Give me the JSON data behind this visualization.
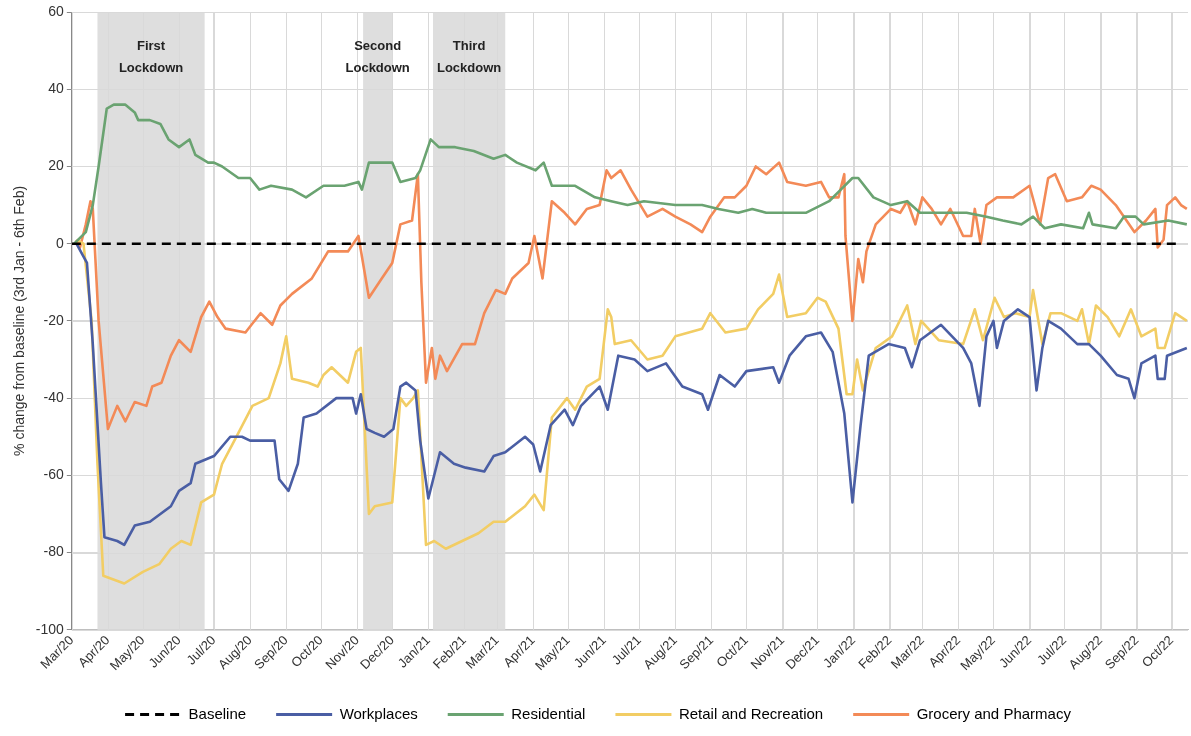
{
  "chart_data": {
    "type": "line",
    "ylabel": "% change from baseline (3rd Jan - 6th Feb)",
    "xlim": [
      "2020-03-01",
      "2022-10-15"
    ],
    "xticks": [
      {
        "value": "2020-03-01",
        "label": "Mar/20"
      },
      {
        "value": "2020-04-01",
        "label": "Apr/20"
      },
      {
        "value": "2020-05-01",
        "label": "May/20"
      },
      {
        "value": "2020-06-01",
        "label": "Jun/20"
      },
      {
        "value": "2020-07-01",
        "label": "Jul/20"
      },
      {
        "value": "2020-08-01",
        "label": "Aug/20"
      },
      {
        "value": "2020-09-01",
        "label": "Sep/20"
      },
      {
        "value": "2020-10-01",
        "label": "Oct/20"
      },
      {
        "value": "2020-11-01",
        "label": "Nov/20"
      },
      {
        "value": "2020-12-01",
        "label": "Dec/20"
      },
      {
        "value": "2021-01-01",
        "label": "Jan/21"
      },
      {
        "value": "2021-02-01",
        "label": "Feb/21"
      },
      {
        "value": "2021-03-01",
        "label": "Mar/21"
      },
      {
        "value": "2021-04-01",
        "label": "Apr/21"
      },
      {
        "value": "2021-05-01",
        "label": "May/21"
      },
      {
        "value": "2021-06-01",
        "label": "Jun/21"
      },
      {
        "value": "2021-07-01",
        "label": "Jul/21"
      },
      {
        "value": "2021-08-01",
        "label": "Aug/21"
      },
      {
        "value": "2021-09-01",
        "label": "Sep/21"
      },
      {
        "value": "2021-10-01",
        "label": "Oct/21"
      },
      {
        "value": "2021-11-01",
        "label": "Nov/21"
      },
      {
        "value": "2021-12-01",
        "label": "Dec/21"
      },
      {
        "value": "2022-01-01",
        "label": "Jan/22"
      },
      {
        "value": "2022-02-01",
        "label": "Feb/22"
      },
      {
        "value": "2022-03-01",
        "label": "Mar/22"
      },
      {
        "value": "2022-04-01",
        "label": "Apr/22"
      },
      {
        "value": "2022-05-01",
        "label": "May/22"
      },
      {
        "value": "2022-06-01",
        "label": "Jun/22"
      },
      {
        "value": "2022-07-01",
        "label": "Jul/22"
      },
      {
        "value": "2022-08-01",
        "label": "Aug/22"
      },
      {
        "value": "2022-09-01",
        "label": "Sep/22"
      },
      {
        "value": "2022-10-01",
        "label": "Oct/22"
      }
    ],
    "ylim": [
      -100,
      60
    ],
    "yticks": [
      -100,
      -80,
      -60,
      -40,
      -20,
      0,
      20,
      40,
      60
    ],
    "grid": true,
    "legend": "bottom",
    "marker": "none",
    "bands": [
      {
        "axis": "x",
        "from": "2020-03-23",
        "to": "2020-06-23",
        "label": "First Lockdown",
        "color": "#dedede"
      },
      {
        "axis": "x",
        "from": "2020-11-06",
        "to": "2020-12-01",
        "label": "Second Lockdown",
        "color": "#dedede"
      },
      {
        "axis": "x",
        "from": "2021-01-05",
        "to": "2021-03-08",
        "label": "Third Lockdown",
        "color": "#dedede"
      }
    ],
    "series": [
      {
        "name": "Baseline",
        "color": "#000000",
        "line_style": "dashed",
        "x": [
          "2020-03-01",
          "2022-10-07"
        ],
        "values": [
          0,
          0
        ]
      },
      {
        "name": "Workplaces",
        "color": "#4a5ea4",
        "x": [
          "2020-03-05",
          "2020-03-14",
          "2020-03-19",
          "2020-03-26",
          "2020-03-29",
          "2020-04-09",
          "2020-04-15",
          "2020-04-24",
          "2020-05-07",
          "2020-05-16",
          "2020-05-25",
          "2020-06-01",
          "2020-06-11",
          "2020-06-15",
          "2020-07-01",
          "2020-07-15",
          "2020-07-25",
          "2020-08-01",
          "2020-08-22",
          "2020-08-26",
          "2020-09-03",
          "2020-09-11",
          "2020-09-16",
          "2020-09-27",
          "2020-10-14",
          "2020-10-28",
          "2020-10-31",
          "2020-11-04",
          "2020-11-09",
          "2020-11-16",
          "2020-11-24",
          "2020-12-02",
          "2020-12-08",
          "2020-12-13",
          "2020-12-21",
          "2020-12-25",
          "2021-01-01",
          "2021-01-11",
          "2021-01-23",
          "2021-02-02",
          "2021-02-18",
          "2021-02-26",
          "2021-03-08",
          "2021-03-25",
          "2021-04-01",
          "2021-04-07",
          "2021-04-16",
          "2021-04-28",
          "2021-05-05",
          "2021-05-12",
          "2021-05-28",
          "2021-06-04",
          "2021-06-13",
          "2021-06-27",
          "2021-07-08",
          "2021-07-24",
          "2021-08-07",
          "2021-08-24",
          "2021-08-29",
          "2021-09-08",
          "2021-09-21",
          "2021-10-01",
          "2021-10-24",
          "2021-10-29",
          "2021-11-07",
          "2021-11-21",
          "2021-12-04",
          "2021-12-14",
          "2021-12-24",
          "2021-12-31",
          "2022-01-07",
          "2022-01-14",
          "2022-01-31",
          "2022-02-14",
          "2022-02-20",
          "2022-02-27",
          "2022-03-17",
          "2022-04-05",
          "2022-04-12",
          "2022-04-19",
          "2022-04-25",
          "2022-05-01",
          "2022-05-04",
          "2022-05-10",
          "2022-05-22",
          "2022-06-01",
          "2022-06-07",
          "2022-06-12",
          "2022-06-17",
          "2022-06-28",
          "2022-07-12",
          "2022-07-22",
          "2022-08-01",
          "2022-08-15",
          "2022-08-25",
          "2022-08-30",
          "2022-09-05",
          "2022-09-17",
          "2022-09-19",
          "2022-09-25",
          "2022-09-27",
          "2022-10-14"
        ],
        "values": [
          0,
          -5,
          -26,
          -62,
          -76,
          -77,
          -78,
          -73,
          -72,
          -70,
          -68,
          -64,
          -62,
          -57,
          -55,
          -50,
          -50,
          -51,
          -51,
          -61,
          -64,
          -57,
          -45,
          -44,
          -40,
          -40,
          -44,
          -39,
          -48,
          -49,
          -50,
          -48,
          -37,
          -36,
          -38,
          -51,
          -66,
          -54,
          -57,
          -58,
          -59,
          -55,
          -54,
          -50,
          -52,
          -59,
          -47,
          -43,
          -47,
          -42,
          -37,
          -43,
          -29,
          -30,
          -33,
          -31,
          -37,
          -39,
          -43,
          -34,
          -37,
          -33,
          -32,
          -36,
          -29,
          -24,
          -23,
          -28,
          -44,
          -67,
          -47,
          -29,
          -26,
          -27,
          -32,
          -25,
          -21,
          -27,
          -31,
          -42,
          -24,
          -20,
          -27,
          -20,
          -17,
          -19,
          -38,
          -27,
          -20,
          -22,
          -26,
          -26,
          -29,
          -34,
          -35,
          -40,
          -31,
          -29,
          -35,
          -35,
          -29,
          -27
        ]
      },
      {
        "name": "Residential",
        "color": "#6aa371",
        "x": [
          "2020-03-03",
          "2020-03-13",
          "2020-03-19",
          "2020-03-24",
          "2020-03-31",
          "2020-04-06",
          "2020-04-16",
          "2020-04-24",
          "2020-04-27",
          "2020-05-07",
          "2020-05-16",
          "2020-05-23",
          "2020-06-01",
          "2020-06-10",
          "2020-06-15",
          "2020-06-26",
          "2020-07-01",
          "2020-07-08",
          "2020-07-22",
          "2020-08-01",
          "2020-08-09",
          "2020-08-19",
          "2020-09-06",
          "2020-09-18",
          "2020-10-03",
          "2020-10-21",
          "2020-11-02",
          "2020-11-05",
          "2020-11-11",
          "2020-11-16",
          "2020-12-01",
          "2020-12-08",
          "2020-12-21",
          "2020-12-25",
          "2021-01-03",
          "2021-01-10",
          "2021-01-24",
          "2021-02-09",
          "2021-02-26",
          "2021-03-08",
          "2021-03-18",
          "2021-04-03",
          "2021-04-10",
          "2021-04-17",
          "2021-05-07",
          "2021-05-24",
          "2021-06-07",
          "2021-06-21",
          "2021-07-05",
          "2021-08-01",
          "2021-08-24",
          "2021-09-07",
          "2021-09-24",
          "2021-10-06",
          "2021-10-18",
          "2021-11-21",
          "2021-12-11",
          "2021-12-21",
          "2021-12-31",
          "2022-01-05",
          "2022-01-18",
          "2022-02-02",
          "2022-02-16",
          "2022-02-27",
          "2022-03-15",
          "2022-04-08",
          "2022-04-25",
          "2022-05-09",
          "2022-05-25",
          "2022-06-04",
          "2022-06-14",
          "2022-06-28",
          "2022-07-17",
          "2022-07-22",
          "2022-07-25",
          "2022-08-14",
          "2022-08-21",
          "2022-08-31",
          "2022-09-07",
          "2022-09-28",
          "2022-10-14"
        ],
        "values": [
          0,
          3,
          10,
          20,
          35,
          36,
          36,
          34,
          32,
          32,
          31,
          27,
          25,
          27,
          23,
          21,
          21,
          20,
          17,
          17,
          14,
          15,
          14,
          12,
          15,
          15,
          16,
          14,
          21,
          21,
          21,
          16,
          17,
          19,
          27,
          25,
          25,
          24,
          22,
          23,
          21,
          19,
          21,
          15,
          15,
          12,
          11,
          10,
          11,
          10,
          10,
          9,
          8,
          9,
          8,
          8,
          11,
          14,
          17,
          17,
          12,
          10,
          11,
          8,
          8,
          8,
          7,
          6,
          5,
          7,
          4,
          5,
          4,
          8,
          5,
          4,
          7,
          7,
          5,
          6,
          5
        ]
      },
      {
        "name": "Retail and Recreation",
        "color": "#f2cd64",
        "x": [
          "2020-03-05",
          "2020-03-11",
          "2020-03-18",
          "2020-03-23",
          "2020-03-28",
          "2020-04-15",
          "2020-05-01",
          "2020-05-15",
          "2020-05-25",
          "2020-06-03",
          "2020-06-11",
          "2020-06-20",
          "2020-07-01",
          "2020-07-08",
          "2020-07-22",
          "2020-08-03",
          "2020-08-17",
          "2020-08-27",
          "2020-09-01",
          "2020-09-06",
          "2020-09-20",
          "2020-09-28",
          "2020-10-03",
          "2020-10-10",
          "2020-10-24",
          "2020-10-31",
          "2020-11-04",
          "2020-11-11",
          "2020-11-16",
          "2020-12-01",
          "2020-12-08",
          "2020-12-13",
          "2020-12-19",
          "2020-12-23",
          "2020-12-30",
          "2021-01-06",
          "2021-01-16",
          "2021-01-30",
          "2021-02-13",
          "2021-02-26",
          "2021-03-08",
          "2021-03-25",
          "2021-04-02",
          "2021-04-10",
          "2021-04-17",
          "2021-04-30",
          "2021-05-07",
          "2021-05-17",
          "2021-05-28",
          "2021-06-04",
          "2021-06-07",
          "2021-06-10",
          "2021-06-24",
          "2021-07-08",
          "2021-07-21",
          "2021-08-01",
          "2021-08-24",
          "2021-08-31",
          "2021-09-13",
          "2021-10-01",
          "2021-10-11",
          "2021-10-24",
          "2021-10-29",
          "2021-11-05",
          "2021-11-21",
          "2021-12-01",
          "2021-12-08",
          "2021-12-19",
          "2021-12-26",
          "2021-12-31",
          "2022-01-04",
          "2022-01-09",
          "2022-01-20",
          "2022-02-03",
          "2022-02-16",
          "2022-02-23",
          "2022-02-28",
          "2022-03-09",
          "2022-03-15",
          "2022-04-05",
          "2022-04-15",
          "2022-04-22",
          "2022-05-02",
          "2022-05-10",
          "2022-05-20",
          "2022-06-01",
          "2022-06-04",
          "2022-06-12",
          "2022-06-19",
          "2022-06-28",
          "2022-07-12",
          "2022-07-16",
          "2022-07-22",
          "2022-07-28",
          "2022-08-07",
          "2022-08-17",
          "2022-08-27",
          "2022-09-05",
          "2022-09-17",
          "2022-09-19",
          "2022-09-25",
          "2022-10-04",
          "2022-10-14"
        ],
        "values": [
          1,
          0,
          -20,
          -57,
          -86,
          -88,
          -85,
          -83,
          -79,
          -77,
          -78,
          -67,
          -65,
          -57,
          -49,
          -42,
          -40,
          -31,
          -24,
          -35,
          -36,
          -37,
          -34,
          -32,
          -36,
          -28,
          -27,
          -70,
          -68,
          -67,
          -40,
          -42,
          -40,
          -38,
          -78,
          -77,
          -79,
          -77,
          -75,
          -72,
          -72,
          -68,
          -65,
          -69,
          -45,
          -40,
          -43,
          -37,
          -35,
          -17,
          -19,
          -26,
          -25,
          -30,
          -29,
          -24,
          -22,
          -18,
          -23,
          -22,
          -17,
          -13,
          -8,
          -19,
          -18,
          -14,
          -15,
          -22,
          -39,
          -39,
          -30,
          -38,
          -27,
          -24,
          -16,
          -26,
          -20,
          -23,
          -25,
          -26,
          -17,
          -25,
          -14,
          -19,
          -18,
          -19,
          -12,
          -26,
          -18,
          -18,
          -20,
          -17,
          -26,
          -16,
          -19,
          -24,
          -17,
          -24,
          -22,
          -27,
          -27,
          -18,
          -20
        ]
      },
      {
        "name": "Grocery and Pharmacy",
        "color": "#f38a57",
        "x": [
          "2020-03-05",
          "2020-03-08",
          "2020-03-13",
          "2020-03-17",
          "2020-03-19",
          "2020-03-24",
          "2020-04-01",
          "2020-04-09",
          "2020-04-16",
          "2020-04-24",
          "2020-05-04",
          "2020-05-09",
          "2020-05-17",
          "2020-05-25",
          "2020-06-01",
          "2020-06-11",
          "2020-06-20",
          "2020-06-27",
          "2020-07-04",
          "2020-07-11",
          "2020-07-28",
          "2020-08-10",
          "2020-08-20",
          "2020-08-27",
          "2020-09-06",
          "2020-09-23",
          "2020-10-07",
          "2020-10-24",
          "2020-11-02",
          "2020-11-11",
          "2020-11-22",
          "2020-12-01",
          "2020-12-08",
          "2020-12-18",
          "2020-12-23",
          "2020-12-26",
          "2020-12-30",
          "2021-01-04",
          "2021-01-07",
          "2021-01-11",
          "2021-01-17",
          "2021-01-30",
          "2021-02-10",
          "2021-02-18",
          "2021-02-28",
          "2021-03-08",
          "2021-03-14",
          "2021-03-28",
          "2021-04-02",
          "2021-04-09",
          "2021-04-17",
          "2021-04-28",
          "2021-05-07",
          "2021-05-17",
          "2021-05-28",
          "2021-06-03",
          "2021-06-07",
          "2021-06-15",
          "2021-06-24",
          "2021-07-08",
          "2021-07-21",
          "2021-08-01",
          "2021-08-14",
          "2021-08-24",
          "2021-08-31",
          "2021-09-12",
          "2021-09-21",
          "2021-10-01",
          "2021-10-09",
          "2021-10-18",
          "2021-10-29",
          "2021-11-05",
          "2021-11-21",
          "2021-12-04",
          "2021-12-11",
          "2021-12-19",
          "2021-12-24",
          "2021-12-25",
          "2021-12-31",
          "2022-01-05",
          "2022-01-09",
          "2022-01-12",
          "2022-01-20",
          "2022-02-02",
          "2022-02-10",
          "2022-02-16",
          "2022-02-23",
          "2022-03-01",
          "2022-03-09",
          "2022-03-17",
          "2022-03-25",
          "2022-04-05",
          "2022-04-12",
          "2022-04-15",
          "2022-04-20",
          "2022-04-25",
          "2022-05-04",
          "2022-05-10",
          "2022-05-18",
          "2022-06-01",
          "2022-06-10",
          "2022-06-17",
          "2022-06-23",
          "2022-07-03",
          "2022-07-16",
          "2022-07-24",
          "2022-08-01",
          "2022-08-14",
          "2022-08-21",
          "2022-08-30",
          "2022-09-09",
          "2022-09-17",
          "2022-09-19",
          "2022-09-24",
          "2022-09-27",
          "2022-10-04",
          "2022-10-09",
          "2022-10-14"
        ],
        "values": [
          1,
          -1,
          5,
          11,
          9,
          -20,
          -48,
          -42,
          -46,
          -41,
          -42,
          -37,
          -36,
          -29,
          -25,
          -28,
          -19,
          -15,
          -19,
          -22,
          -23,
          -18,
          -21,
          -16,
          -13,
          -9,
          -2,
          -2,
          2,
          -14,
          -9,
          -5,
          5,
          6,
          18,
          -10,
          -36,
          -27,
          -35,
          -29,
          -33,
          -26,
          -26,
          -18,
          -12,
          -13,
          -9,
          -5,
          2,
          -9,
          11,
          8,
          5,
          9,
          10,
          19,
          17,
          19,
          14,
          7,
          9,
          7,
          5,
          3,
          7,
          12,
          12,
          15,
          20,
          18,
          21,
          16,
          15,
          16,
          12,
          12,
          18,
          2,
          -20,
          -4,
          -10,
          -2,
          5,
          9,
          8,
          11,
          5,
          12,
          9,
          5,
          9,
          2,
          2,
          9,
          0,
          10,
          12,
          12,
          12,
          15,
          5,
          17,
          18,
          11,
          12,
          15,
          14,
          10,
          7,
          3,
          6,
          9,
          -1,
          1,
          10,
          12,
          10,
          9
        ]
      }
    ]
  }
}
